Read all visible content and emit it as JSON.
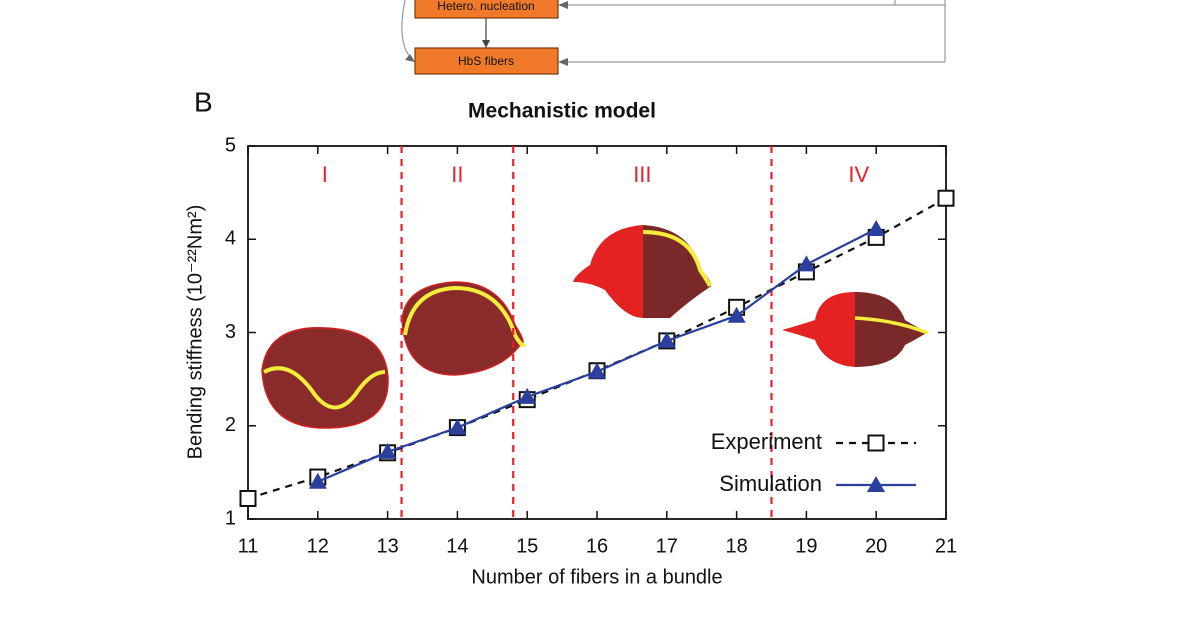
{
  "panel_label": "B",
  "flowchart": {
    "nodes": [
      "Hetero. nucleation",
      "HbS fibers"
    ]
  },
  "chart_data": {
    "type": "line",
    "title": "Mechanistic model",
    "x_label": "Number of fibers in a bundle",
    "y_label": "Bending stiffness (10⁻²²Nm²)",
    "x": [
      11,
      12,
      13,
      14,
      15,
      16,
      17,
      18,
      19,
      20,
      21
    ],
    "series": [
      {
        "name": "Experiment",
        "color": "#111111",
        "marker": "square",
        "dash": true,
        "values": [
          1.22,
          1.45,
          1.71,
          1.98,
          2.28,
          2.59,
          2.91,
          3.27,
          3.65,
          4.02,
          4.44
        ]
      },
      {
        "name": "Simulation",
        "color": "#2b3f9e",
        "marker": "triangle",
        "dash": false,
        "values": [
          null,
          1.4,
          1.72,
          1.98,
          2.31,
          2.58,
          2.91,
          3.18,
          3.73,
          4.11,
          null
        ]
      }
    ],
    "region_bounds": [
      13.2,
      14.8,
      18.5
    ],
    "regions": [
      "I",
      "II",
      "III",
      "IV"
    ],
    "region_color": "#e8202a",
    "xlim": [
      11,
      21
    ],
    "ylim": [
      1,
      5
    ],
    "xticks": [
      11,
      12,
      13,
      14,
      15,
      16,
      17,
      18,
      19,
      20,
      21
    ],
    "yticks": [
      1,
      2,
      3,
      4,
      5
    ],
    "legend": "lower right"
  }
}
